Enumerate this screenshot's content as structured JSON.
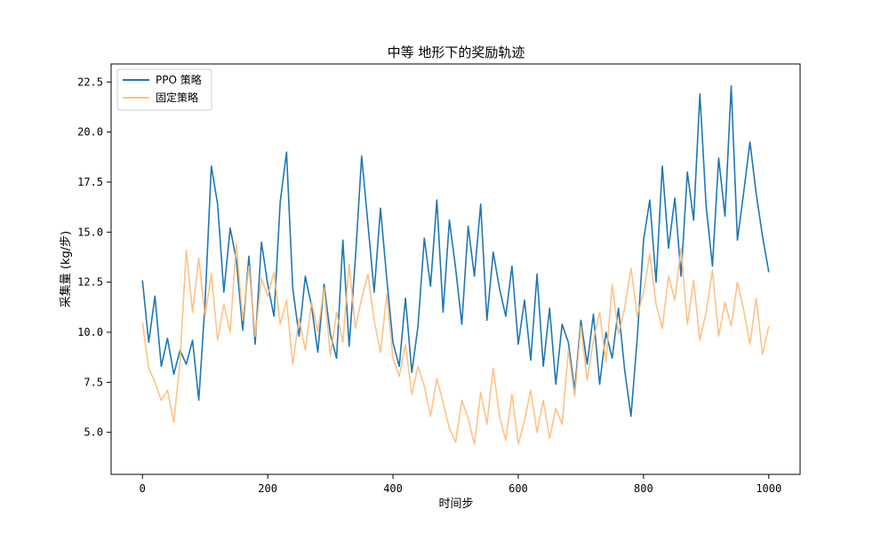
{
  "chart_data": {
    "type": "line",
    "title": "中等 地形下的奖励轨迹",
    "xlabel": "时间步",
    "ylabel": "采集量 (kg/步)",
    "xlim": [
      -50,
      1050
    ],
    "ylim": [
      2.9,
      23.4
    ],
    "xticks": [
      0,
      200,
      400,
      600,
      800,
      1000
    ],
    "xtick_labels": [
      "0",
      "200",
      "400",
      "600",
      "800",
      "1000"
    ],
    "yticks": [
      5.0,
      7.5,
      10.0,
      12.5,
      15.0,
      17.5,
      20.0,
      22.5
    ],
    "ytick_labels": [
      "5.0",
      "7.5",
      "10.0",
      "12.5",
      "15.0",
      "17.5",
      "20.0",
      "22.5"
    ],
    "grid": false,
    "legend_position": "upper-left",
    "series": [
      {
        "name": "PPO 策略",
        "color": "#1f77b4",
        "opacity": 1.0,
        "x": [
          0,
          10,
          20,
          30,
          40,
          50,
          60,
          70,
          80,
          90,
          100,
          110,
          120,
          130,
          140,
          150,
          160,
          170,
          180,
          190,
          200,
          210,
          220,
          230,
          240,
          250,
          260,
          270,
          280,
          290,
          300,
          310,
          320,
          330,
          340,
          350,
          360,
          370,
          380,
          390,
          400,
          410,
          420,
          430,
          440,
          450,
          460,
          470,
          480,
          490,
          500,
          510,
          520,
          530,
          540,
          550,
          560,
          570,
          580,
          590,
          600,
          610,
          620,
          630,
          640,
          650,
          660,
          670,
          680,
          690,
          700,
          710,
          720,
          730,
          740,
          750,
          760,
          770,
          780,
          790,
          800,
          810,
          820,
          830,
          840,
          850,
          860,
          870,
          880,
          890,
          900,
          910,
          920,
          930,
          940,
          950,
          960,
          970,
          980,
          990,
          1000
        ],
        "values": [
          12.6,
          9.5,
          11.8,
          8.3,
          9.7,
          7.9,
          9.1,
          8.4,
          9.6,
          6.6,
          11.5,
          18.3,
          16.4,
          12.0,
          15.2,
          13.6,
          10.1,
          13.8,
          9.4,
          14.5,
          12.4,
          10.8,
          16.5,
          19.0,
          12.2,
          9.8,
          12.8,
          11.3,
          9.0,
          12.4,
          9.9,
          8.7,
          14.6,
          9.3,
          13.7,
          18.8,
          15.4,
          12.0,
          16.2,
          12.7,
          9.5,
          8.3,
          11.7,
          8.0,
          10.3,
          14.7,
          12.3,
          16.6,
          11.0,
          15.6,
          13.2,
          10.4,
          15.3,
          12.8,
          16.4,
          10.6,
          14.0,
          12.2,
          10.8,
          13.3,
          9.4,
          11.6,
          8.6,
          12.9,
          8.3,
          11.2,
          7.4,
          10.4,
          9.5,
          7.1,
          10.6,
          8.4,
          10.9,
          7.4,
          10.0,
          8.7,
          11.2,
          8.1,
          5.8,
          9.7,
          14.6,
          16.6,
          12.5,
          18.3,
          14.2,
          16.7,
          12.8,
          18.0,
          15.6,
          21.9,
          16.3,
          13.3,
          18.7,
          15.8,
          22.3,
          14.6,
          17.0,
          19.5,
          16.9,
          14.8,
          13.0
        ]
      },
      {
        "name": "固定策略",
        "color": "#ffbb78",
        "opacity": 0.9,
        "x": [
          0,
          10,
          20,
          30,
          40,
          50,
          60,
          70,
          80,
          90,
          100,
          110,
          120,
          130,
          140,
          150,
          160,
          170,
          180,
          190,
          200,
          210,
          220,
          230,
          240,
          250,
          260,
          270,
          280,
          290,
          300,
          310,
          320,
          330,
          340,
          350,
          360,
          370,
          380,
          390,
          400,
          410,
          420,
          430,
          440,
          450,
          460,
          470,
          480,
          490,
          500,
          510,
          520,
          530,
          540,
          550,
          560,
          570,
          580,
          590,
          600,
          610,
          620,
          630,
          640,
          650,
          660,
          670,
          680,
          690,
          700,
          710,
          720,
          730,
          740,
          750,
          760,
          770,
          780,
          790,
          800,
          810,
          820,
          830,
          840,
          850,
          860,
          870,
          880,
          890,
          900,
          910,
          920,
          930,
          940,
          950,
          960,
          970,
          980,
          990,
          1000
        ],
        "values": [
          10.5,
          8.2,
          7.5,
          6.6,
          7.1,
          5.5,
          8.5,
          14.1,
          11.0,
          13.7,
          10.8,
          12.9,
          9.6,
          11.4,
          10.0,
          14.4,
          10.6,
          13.3,
          9.8,
          12.7,
          11.8,
          13.0,
          10.4,
          11.6,
          8.4,
          10.7,
          9.1,
          11.5,
          10.0,
          12.2,
          8.8,
          11.0,
          9.5,
          13.4,
          10.2,
          11.7,
          12.9,
          10.6,
          9.0,
          11.9,
          8.7,
          7.8,
          9.4,
          6.9,
          8.3,
          7.3,
          5.8,
          7.7,
          6.5,
          5.2,
          4.5,
          6.6,
          5.7,
          4.4,
          7.0,
          5.4,
          8.2,
          5.8,
          4.6,
          6.9,
          4.4,
          5.6,
          7.1,
          5.0,
          6.6,
          4.7,
          6.2,
          5.4,
          9.1,
          6.8,
          10.3,
          7.6,
          9.6,
          11.0,
          8.5,
          12.4,
          9.9,
          11.2,
          13.2,
          10.8,
          12.0,
          13.9,
          11.4,
          10.2,
          12.8,
          11.6,
          14.2,
          10.4,
          12.6,
          9.6,
          11.0,
          13.1,
          9.8,
          11.5,
          10.3,
          12.5,
          11.1,
          9.4,
          11.7,
          8.9,
          10.3
        ]
      }
    ]
  }
}
